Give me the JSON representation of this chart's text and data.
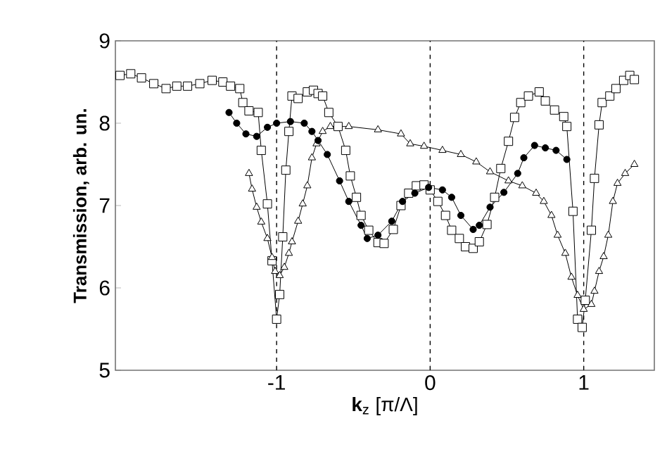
{
  "chart_data": {
    "type": "line",
    "xlabel": "**k**$_{z}$ [π/Λ]",
    "ylabel": "Transmission, arb. un.",
    "xlim": [
      -2.05,
      1.46
    ],
    "ylim": [
      5,
      9
    ],
    "xticks": [
      -1,
      0,
      1
    ],
    "yticks": [
      5,
      6,
      7,
      8,
      9
    ],
    "ref_lines": [
      {
        "axis": "x",
        "value": -1,
        "line_style": "dashed"
      },
      {
        "axis": "x",
        "value": 0,
        "line_style": "dashed"
      },
      {
        "axis": "x",
        "value": 1,
        "line_style": "dashed"
      }
    ],
    "series": [
      {
        "color": "#000000",
        "marker": "square",
        "line_style": "solid",
        "x": [
          -2.02,
          -1.95,
          -1.88,
          -1.8,
          -1.72,
          -1.65,
          -1.58,
          -1.5,
          -1.42,
          -1.35,
          -1.3,
          -1.24,
          -1.22,
          -1.18,
          -1.12,
          -1.1,
          -1.06,
          -1.03,
          -1.0,
          -0.98,
          -0.96,
          -0.94,
          -0.92,
          -0.9,
          -0.86,
          -0.8,
          -0.76,
          -0.73,
          -0.7,
          -0.66,
          -0.6,
          -0.55,
          -0.52,
          -0.48,
          -0.45,
          -0.4,
          -0.34,
          -0.3,
          -0.24,
          -0.19,
          -0.14,
          -0.09,
          -0.04,
          0.0,
          0.05,
          0.1,
          0.14,
          0.19,
          0.23,
          0.28,
          0.32,
          0.37,
          0.42,
          0.46,
          0.51,
          0.55,
          0.59,
          0.64,
          0.71,
          0.75,
          0.81,
          0.87,
          0.89,
          0.93,
          0.96,
          0.99,
          1.01,
          1.05,
          1.07,
          1.1,
          1.12,
          1.17,
          1.21,
          1.26,
          1.3,
          1.33
        ],
        "values": [
          8.58,
          8.6,
          8.55,
          8.48,
          8.42,
          8.45,
          8.45,
          8.48,
          8.52,
          8.5,
          8.45,
          8.42,
          8.25,
          8.15,
          8.13,
          7.67,
          7.02,
          6.33,
          5.62,
          5.92,
          6.62,
          7.43,
          7.9,
          8.33,
          8.3,
          8.38,
          8.4,
          8.36,
          8.33,
          8.13,
          7.96,
          7.67,
          7.36,
          7.1,
          6.88,
          6.7,
          6.55,
          6.54,
          6.71,
          7.0,
          7.15,
          7.24,
          7.25,
          7.19,
          7.05,
          6.88,
          6.7,
          6.6,
          6.5,
          6.48,
          6.56,
          6.77,
          7.1,
          7.45,
          7.78,
          8.07,
          8.25,
          8.33,
          8.38,
          8.27,
          8.16,
          8.08,
          7.96,
          6.93,
          5.62,
          5.52,
          5.85,
          6.7,
          7.33,
          7.98,
          8.25,
          8.33,
          8.42,
          8.52,
          8.58,
          8.53
        ]
      },
      {
        "color": "#000000",
        "marker": "triangle",
        "line_style": "solid",
        "x": [
          -1.18,
          -1.16,
          -1.13,
          -1.1,
          -1.06,
          -1.03,
          -1.01,
          -0.98,
          -0.95,
          -0.92,
          -0.9,
          -0.86,
          -0.83,
          -0.8,
          -0.77,
          -0.74,
          -0.7,
          -0.65,
          -0.53,
          -0.34,
          -0.19,
          -0.13,
          -0.04,
          0.08,
          0.2,
          0.3,
          0.39,
          0.51,
          0.6,
          0.69,
          0.74,
          0.79,
          0.83,
          0.88,
          0.92,
          0.96,
          1.0,
          1.05,
          1.07,
          1.1,
          1.13,
          1.16,
          1.19,
          1.22,
          1.27,
          1.33
        ],
        "values": [
          7.39,
          7.2,
          6.98,
          6.8,
          6.6,
          6.37,
          6.2,
          6.15,
          6.25,
          6.42,
          6.56,
          6.81,
          7.02,
          7.24,
          7.58,
          7.75,
          7.9,
          7.96,
          7.96,
          7.92,
          7.87,
          7.75,
          7.72,
          7.67,
          7.62,
          7.53,
          7.41,
          7.3,
          7.24,
          7.15,
          7.05,
          6.88,
          6.64,
          6.42,
          6.13,
          5.91,
          5.74,
          5.8,
          5.96,
          6.2,
          6.38,
          6.64,
          7.05,
          7.27,
          7.39,
          7.5
        ]
      },
      {
        "color": "#000000",
        "marker": "circle",
        "line_style": "solid",
        "x": [
          -1.31,
          -1.26,
          -1.2,
          -1.13,
          -1.06,
          -1.0,
          -0.91,
          -0.82,
          -0.77,
          -0.73,
          -0.67,
          -0.59,
          -0.53,
          -0.45,
          -0.41,
          -0.34,
          -0.25,
          -0.18,
          -0.1,
          -0.01,
          0.08,
          0.14,
          0.2,
          0.28,
          0.32,
          0.39,
          0.48,
          0.57,
          0.61,
          0.68,
          0.75,
          0.82,
          0.89
        ],
        "values": [
          8.13,
          8.0,
          7.87,
          7.84,
          7.95,
          8.0,
          8.02,
          8.0,
          7.9,
          7.79,
          7.62,
          7.3,
          7.05,
          6.76,
          6.6,
          6.64,
          6.81,
          7.05,
          7.15,
          7.22,
          7.19,
          7.1,
          6.88,
          6.71,
          6.76,
          6.98,
          7.16,
          7.39,
          7.58,
          7.73,
          7.7,
          7.67,
          7.56
        ]
      }
    ]
  }
}
